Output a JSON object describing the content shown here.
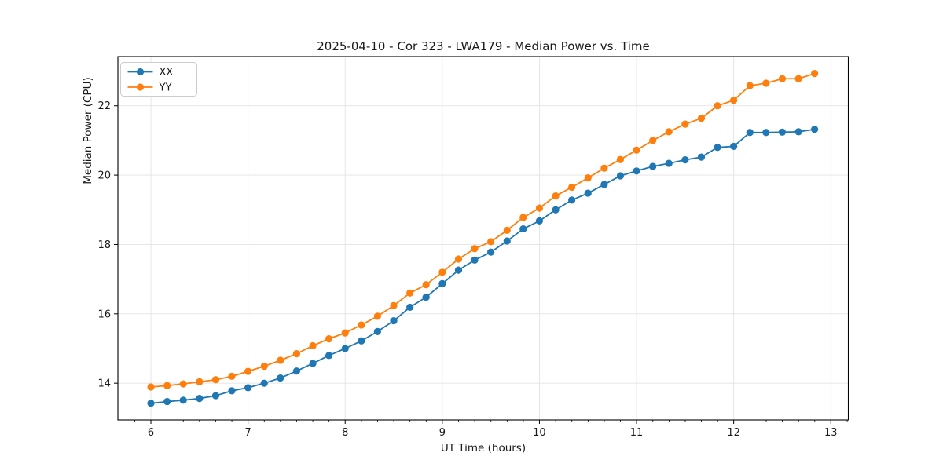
{
  "figure": {
    "background": "#ffffff"
  },
  "chart_data": {
    "type": "line",
    "title": "2025-04-10 - Cor 323 - LWA179 - Median Power vs. Time",
    "xlabel": "UT Time (hours)",
    "ylabel": "Median Power (CPU)",
    "xlim": [
      5.66,
      13.18
    ],
    "ylim": [
      12.94,
      23.42
    ],
    "xticks": [
      6,
      7,
      8,
      9,
      10,
      11,
      12,
      13
    ],
    "yticks": [
      14,
      16,
      18,
      20,
      22
    ],
    "x_minor_step": 0.1667,
    "grid": true,
    "legend_position": "upper-left",
    "x": [
      6.0,
      6.167,
      6.333,
      6.5,
      6.667,
      6.833,
      7.0,
      7.167,
      7.333,
      7.5,
      7.667,
      7.833,
      8.0,
      8.167,
      8.333,
      8.5,
      8.667,
      8.833,
      9.0,
      9.167,
      9.333,
      9.5,
      9.667,
      9.833,
      10.0,
      10.167,
      10.333,
      10.5,
      10.667,
      10.833,
      11.0,
      11.167,
      11.333,
      11.5,
      11.667,
      11.833,
      12.0,
      12.167,
      12.333,
      12.5,
      12.667,
      12.833
    ],
    "series": [
      {
        "name": "XX",
        "color": "#1f77b4",
        "values": [
          13.42,
          13.47,
          13.51,
          13.56,
          13.64,
          13.78,
          13.87,
          14.0,
          14.15,
          14.35,
          14.57,
          14.8,
          15.0,
          15.22,
          15.49,
          15.8,
          16.19,
          16.48,
          16.87,
          17.26,
          17.55,
          17.78,
          18.1,
          18.45,
          18.68,
          19.0,
          19.28,
          19.48,
          19.73,
          19.98,
          20.12,
          20.25,
          20.34,
          20.44,
          20.52,
          20.8,
          20.83,
          21.23,
          21.23,
          21.24,
          21.25,
          21.32
        ]
      },
      {
        "name": "YY",
        "color": "#ff7f0e",
        "values": [
          13.89,
          13.93,
          13.98,
          14.04,
          14.1,
          14.2,
          14.34,
          14.49,
          14.66,
          14.85,
          15.08,
          15.28,
          15.45,
          15.68,
          15.93,
          16.24,
          16.6,
          16.84,
          17.2,
          17.58,
          17.88,
          18.08,
          18.41,
          18.78,
          19.05,
          19.4,
          19.65,
          19.92,
          20.2,
          20.45,
          20.72,
          21.0,
          21.25,
          21.47,
          21.64,
          22.0,
          22.16,
          22.58,
          22.65,
          22.78,
          22.78,
          22.93
        ]
      }
    ]
  },
  "style": {
    "grid_color": "#e3e3e3",
    "spine_color": "#000000",
    "tick_color": "#000000",
    "text_color": "#1a1a1a",
    "legend_border": "#cccccc",
    "legend_background": "#ffffff"
  }
}
